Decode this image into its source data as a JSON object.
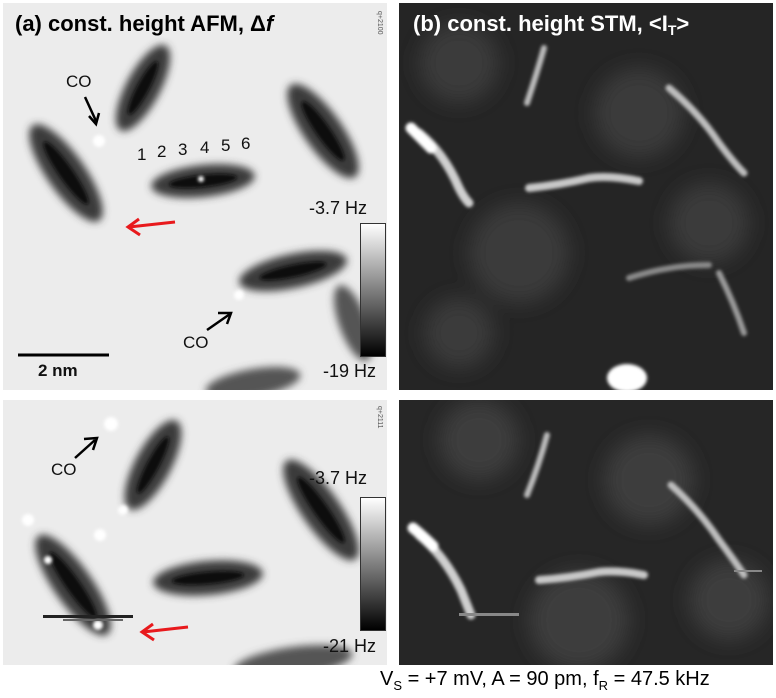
{
  "panel_a": {
    "title": "(a) const. height AFM, Δ",
    "title_italic": "f",
    "scan_id": "q+2100",
    "co_label_1": "CO",
    "co_label_2": "CO",
    "numbers": [
      "1",
      "2",
      "3",
      "4",
      "5",
      "6"
    ],
    "colorbar": {
      "max": "-3.7 Hz",
      "min": "-19 Hz"
    },
    "scalebar": "2 nm"
  },
  "panel_b": {
    "title": "(b) const. height STM, <I",
    "title_sub": "T",
    "title_end": ">"
  },
  "panel_c": {
    "scan_id": "q+2111",
    "co_label": "CO",
    "colorbar": {
      "max": "-3.7 Hz",
      "min": "-21 Hz"
    }
  },
  "params": {
    "v": "V",
    "v_sub": "S",
    "v_val": " = +7 mV, A = 90 pm, f",
    "f_sub": "R",
    "f_val": " = 47.5 kHz"
  },
  "colors": {
    "arrow_red": "#e8191c",
    "arrow_black": "#000000",
    "afm_bg": "#ececec",
    "stm_bg": "#252525"
  }
}
